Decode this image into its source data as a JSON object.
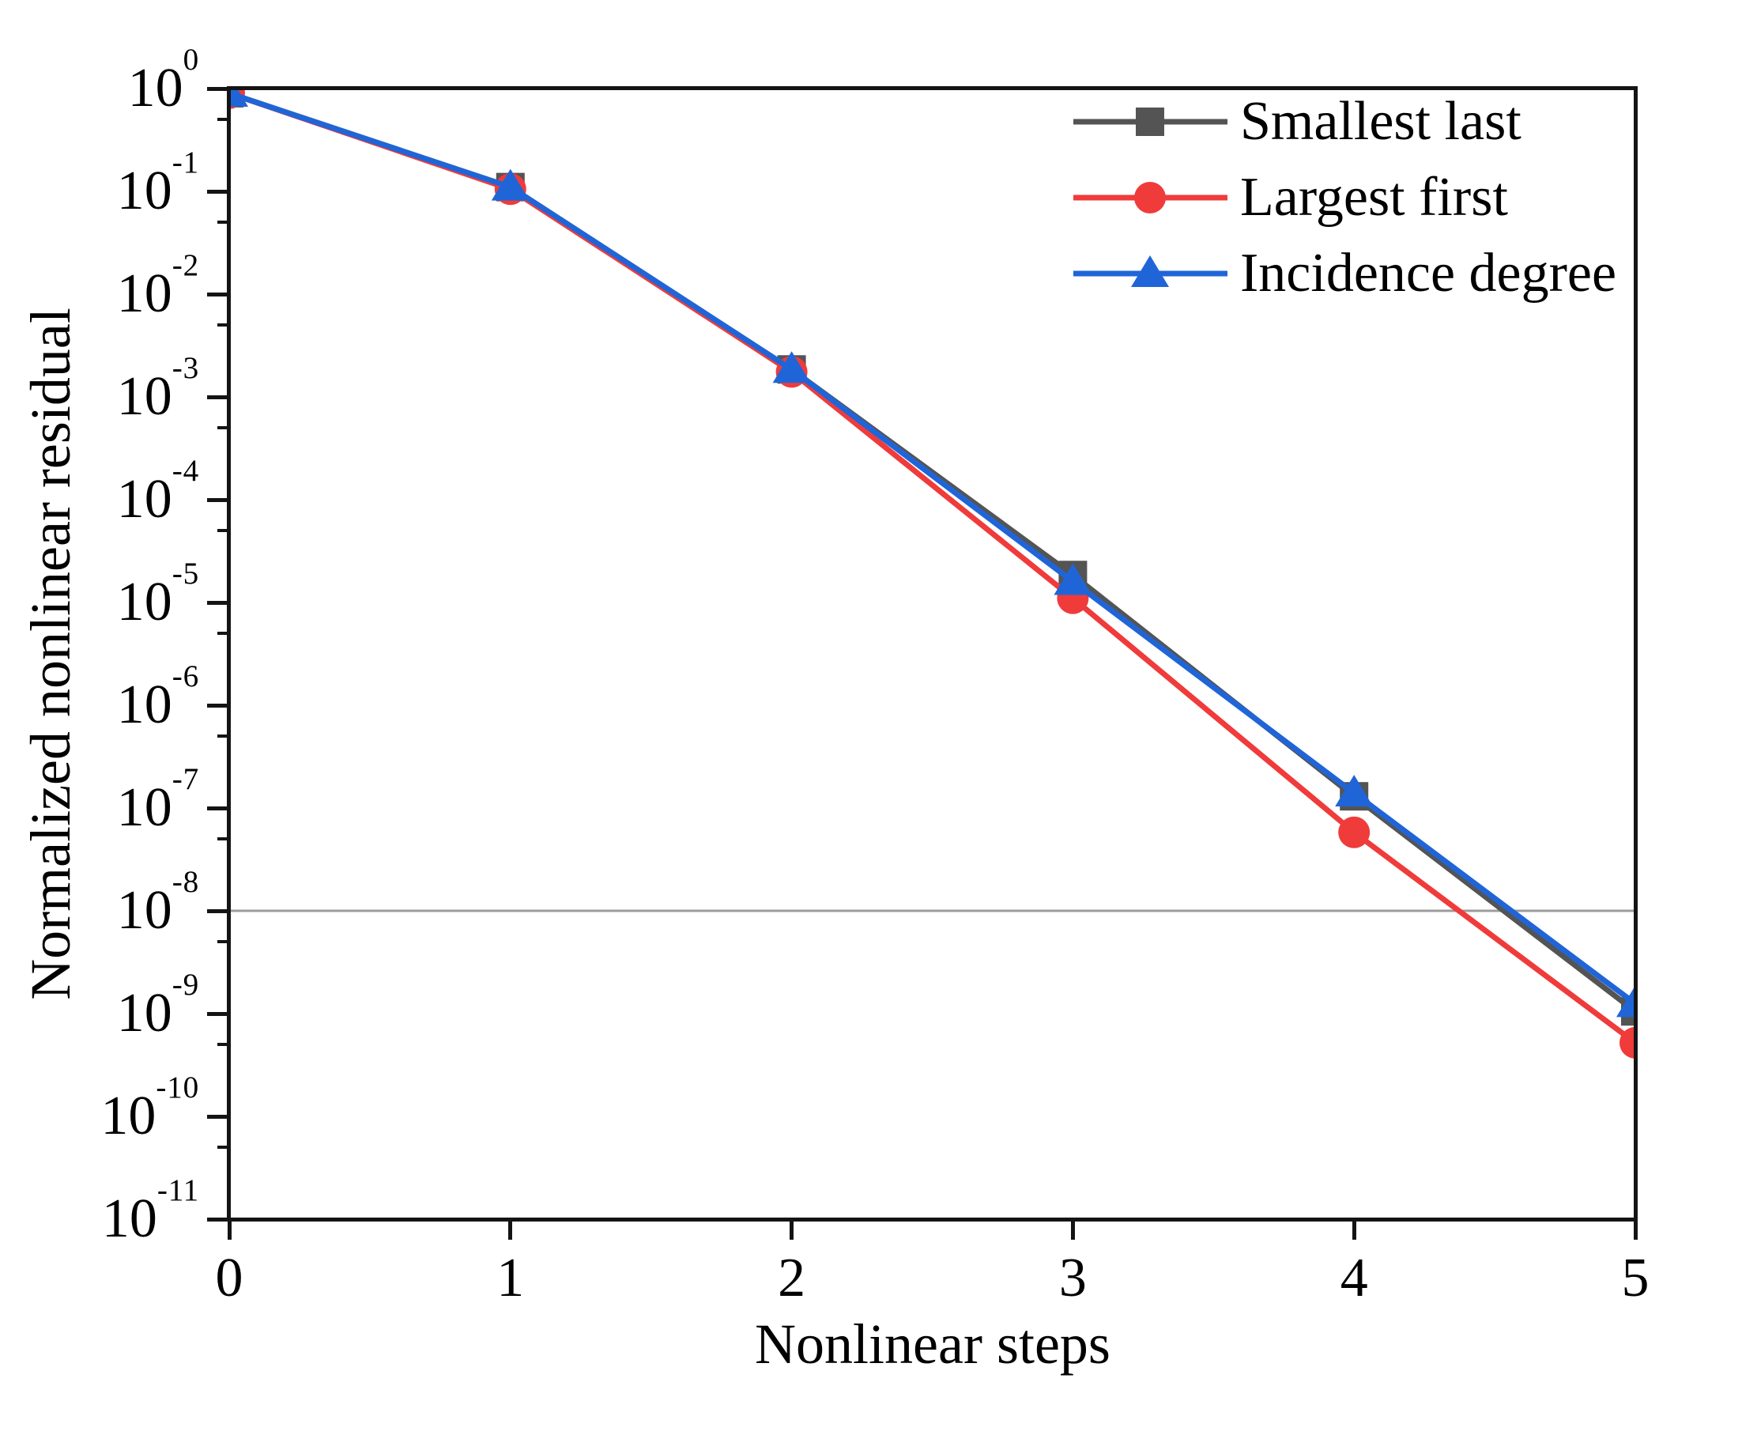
{
  "chart_data": {
    "type": "line",
    "title": "",
    "xlabel": "Nonlinear steps",
    "ylabel": "Normalized nonlinear residual",
    "x": [
      0,
      1,
      2,
      3,
      4,
      5
    ],
    "x_tick_labels": [
      "0",
      "1",
      "2",
      "3",
      "4",
      "5"
    ],
    "xlim": [
      0,
      5
    ],
    "y_scale": "log",
    "ylim": [
      1e-11,
      1
    ],
    "y_tick_exponents": [
      0,
      -1,
      -2,
      -3,
      -4,
      -5,
      -6,
      -7,
      -8,
      -9,
      -10,
      -11
    ],
    "y_minor_tick_log_offset": 0.301,
    "grid": false,
    "reference_line_y": 1e-08,
    "reference_line_color": "#9C9C9C",
    "axis_color": "#141414",
    "legend_position": "top-right-inside",
    "series": [
      {
        "name": "Smallest last",
        "color": "#545454",
        "marker": "square",
        "values": [
          0.9,
          0.11,
          0.00185,
          1.85e-05,
          1.3e-07,
          1.05e-09
        ]
      },
      {
        "name": "Largest first",
        "color": "#F03B3B",
        "marker": "circle",
        "values": [
          0.9,
          0.105,
          0.00175,
          1.1e-05,
          5.8e-08,
          5.2e-10
        ]
      },
      {
        "name": "Incidence degree",
        "color": "#2065D8",
        "marker": "triangle",
        "values": [
          0.9,
          0.11,
          0.00185,
          1.6e-05,
          1.4e-07,
          1.25e-09
        ]
      }
    ]
  }
}
